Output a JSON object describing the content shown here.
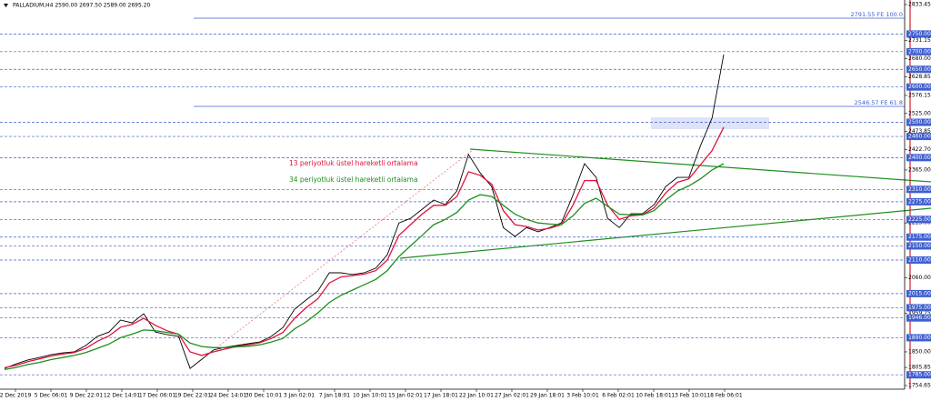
{
  "chart_data": {
    "type": "line",
    "title": "PALLADIUM,H4 2590.00 2697.50 2589.00 2695.20",
    "xticks": [
      "2 Dec 2019",
      "5 Dec 06:01",
      "9 Dec 22:01",
      "12 Dec 14:01",
      "17 Dec 06:01",
      "19 Dec 22:01",
      "24 Dec 14:01",
      "30 Dec 10:01",
      "3 Jan 02:01",
      "7 Jan 18:01",
      "10 Jan 10:01",
      "15 Jan 02:01",
      "17 Jan 18:01",
      "22 Jan 10:01",
      "27 Jan 02:01",
      "29 Jan 18:01",
      "3 Feb 10:01",
      "6 Feb 02:01",
      "10 Feb 18:01",
      "13 Feb 10:01",
      "18 Feb 06:01"
    ],
    "values": [
      1803,
      1816,
      1827,
      1834,
      1842,
      1847,
      1850,
      1868,
      1894,
      1906,
      1940,
      1932,
      1958,
      1906,
      1899,
      1894,
      1803,
      1829,
      1855,
      1863,
      1868,
      1873,
      1878,
      1894,
      1919,
      1971,
      1997,
      2022,
      2074,
      2074,
      2069,
      2074,
      2087,
      2125,
      2215,
      2228,
      2254,
      2280,
      2267,
      2306,
      2409,
      2357,
      2318,
      2202,
      2177,
      2202,
      2190,
      2202,
      2215,
      2293,
      2383,
      2344,
      2228,
      2202,
      2241,
      2241,
      2267,
      2318,
      2344,
      2344,
      2434,
      2512,
      2692
    ],
    "color": "#000000",
    "series": [
      {
        "name": "13 periyotluk üstel hareketli ortalama",
        "color": "#e0143c",
        "values": [
          1805,
          1812,
          1822,
          1830,
          1838,
          1844,
          1848,
          1860,
          1880,
          1895,
          1920,
          1928,
          1945,
          1925,
          1910,
          1900,
          1850,
          1840,
          1850,
          1858,
          1865,
          1870,
          1876,
          1888,
          1905,
          1945,
          1975,
          2000,
          2045,
          2062,
          2066,
          2070,
          2080,
          2110,
          2180,
          2210,
          2240,
          2265,
          2265,
          2290,
          2360,
          2350,
          2325,
          2250,
          2210,
          2205,
          2195,
          2200,
          2210,
          2265,
          2335,
          2335,
          2265,
          2225,
          2235,
          2238,
          2258,
          2300,
          2330,
          2340,
          2380,
          2420,
          2486
        ]
      },
      {
        "name": "34 periyotluk üstel hareketli ortalama",
        "color": "#1f8f1f",
        "values": [
          1800,
          1806,
          1814,
          1820,
          1828,
          1834,
          1840,
          1848,
          1860,
          1872,
          1890,
          1900,
          1912,
          1910,
          1905,
          1900,
          1875,
          1865,
          1862,
          1862,
          1864,
          1866,
          1870,
          1878,
          1888,
          1915,
          1935,
          1960,
          1990,
          2010,
          2025,
          2040,
          2055,
          2080,
          2120,
          2150,
          2180,
          2210,
          2225,
          2245,
          2280,
          2295,
          2290,
          2265,
          2240,
          2225,
          2215,
          2212,
          2210,
          2235,
          2270,
          2285,
          2262,
          2240,
          2238,
          2238,
          2250,
          2280,
          2305,
          2320,
          2340,
          2365,
          2383
        ]
      }
    ],
    "ylim": [
      1754.65,
      2833.45
    ],
    "yticks": [
      {
        "value": 2833.45,
        "label": "2833.45"
      },
      {
        "value": 2731.15,
        "label": "2731.15"
      },
      {
        "value": 2680,
        "label": "2680.00"
      },
      {
        "value": 2628.85,
        "label": "2628.85"
      },
      {
        "value": 2576.15,
        "label": "2576.15"
      },
      {
        "value": 2525,
        "label": "2525.00"
      },
      {
        "value": 2473.85,
        "label": "2473.85"
      },
      {
        "value": 2422.7,
        "label": "2422.70"
      },
      {
        "value": 2365,
        "label": "2365.00"
      },
      {
        "value": 2215,
        "label": "2215.00"
      },
      {
        "value": 2060,
        "label": "2060.00"
      },
      {
        "value": 1959.75,
        "label": "1959.75"
      },
      {
        "value": 1850,
        "label": "1850.00"
      },
      {
        "value": 1805.85,
        "label": "1805.85"
      },
      {
        "value": 1754.65,
        "label": "1754.65"
      }
    ],
    "levels": [
      {
        "value": 2750,
        "label": "2750.00"
      },
      {
        "value": 2700,
        "label": "2700.00"
      },
      {
        "value": 2650,
        "label": "2650.00"
      },
      {
        "value": 2600,
        "label": "2600.00"
      },
      {
        "value": 2500,
        "label": "2500.00"
      },
      {
        "value": 2460,
        "label": "2460.00"
      },
      {
        "value": 2400,
        "label": "2400.00"
      },
      {
        "value": 2310,
        "label": "2310.00"
      },
      {
        "value": 2275,
        "label": "2275.00"
      },
      {
        "value": 2225,
        "label": "2225.00"
      },
      {
        "value": 2175,
        "label": "2175.00"
      },
      {
        "value": 2150,
        "label": "2150.00"
      },
      {
        "value": 2110,
        "label": "2110.00"
      },
      {
        "value": 2015,
        "label": "2015.00"
      },
      {
        "value": 1975,
        "label": "1975.00"
      },
      {
        "value": 1946,
        "label": "1946.00"
      },
      {
        "value": 1890,
        "label": "1890.00"
      },
      {
        "value": 1785,
        "label": "1785.00"
      }
    ],
    "annotations": [
      "2791.55 FE 100.0",
      "2546.57 FE 61.8"
    ]
  }
}
